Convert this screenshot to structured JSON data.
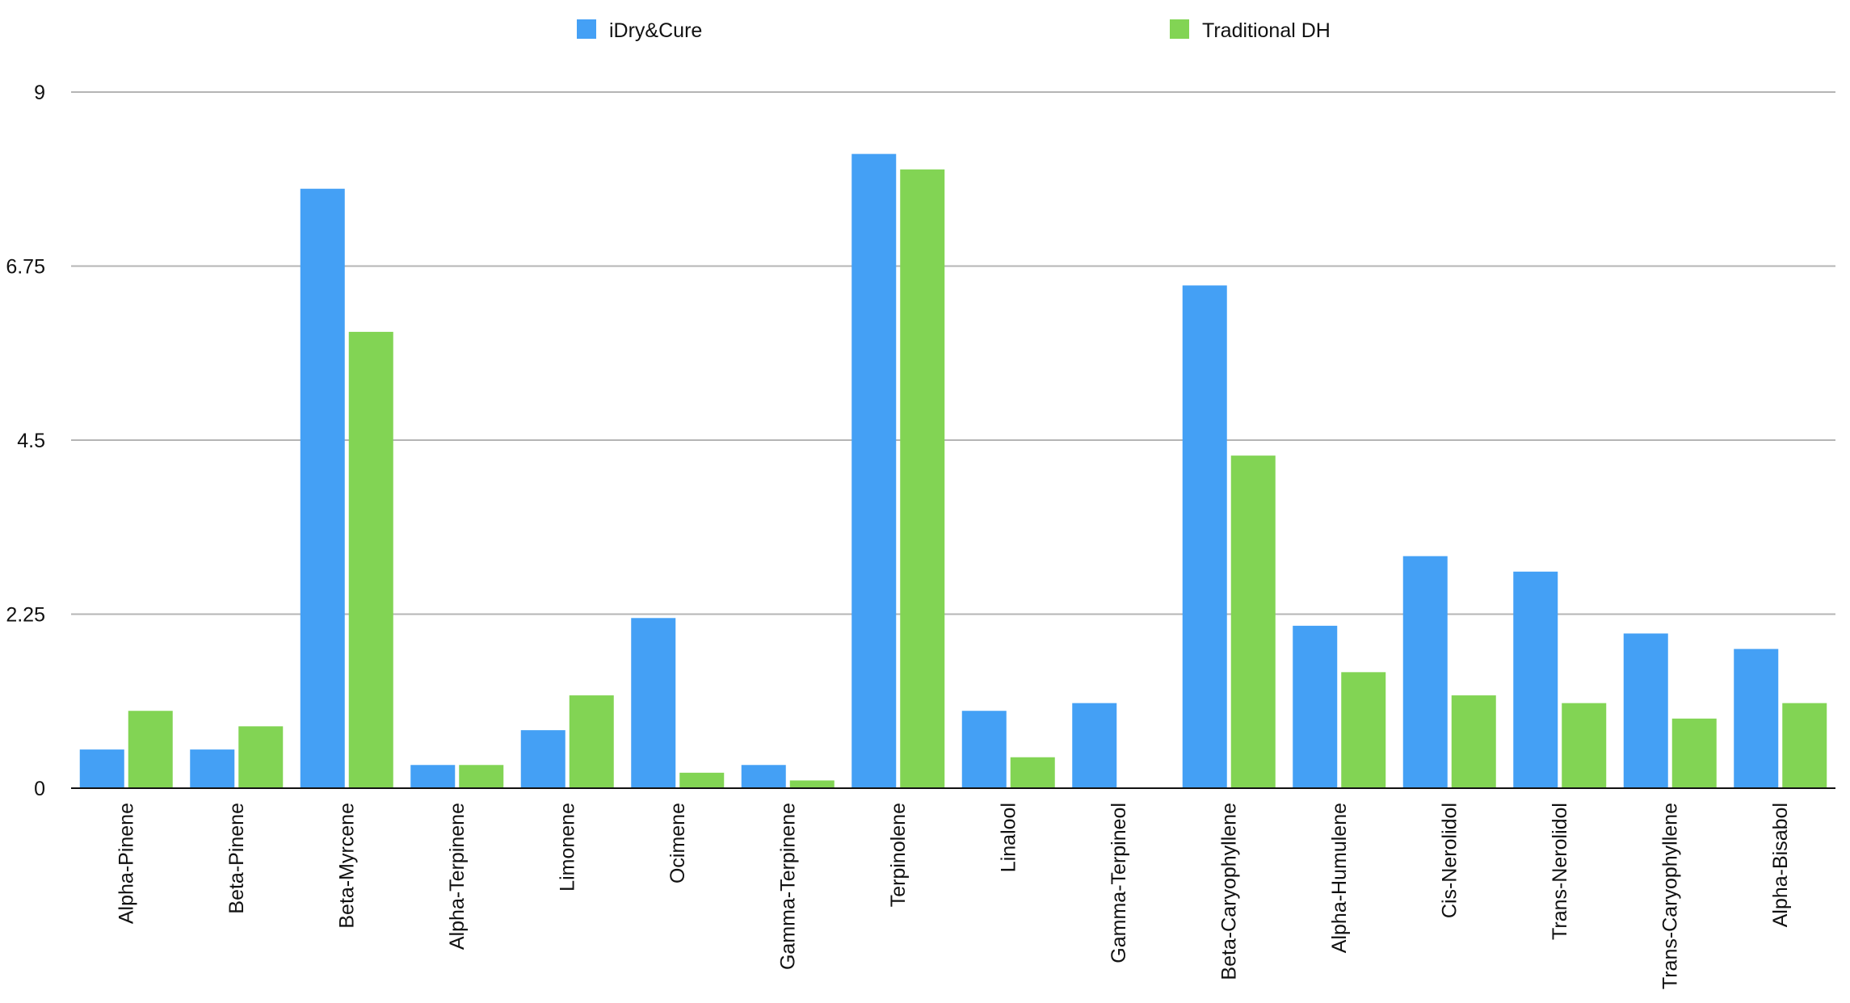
{
  "chart_data": {
    "type": "bar",
    "categories": [
      "Alpha-Pinene",
      "Beta-Pinene",
      "Beta-Myrcene",
      "Alpha-Terpinene",
      "Limonene",
      "Ocimene",
      "Gamma-Terpinene",
      "Terpinolene",
      "Linalool",
      "Gamma-Terpineol",
      "Beta-Caryophyllene",
      "Alpha-Humulene",
      "Cis-Nerolidol",
      "Trans-Nerolidol",
      "Trans-Caryophyllene",
      "Alpha-Bisabol"
    ],
    "series": [
      {
        "name": "iDry&Cure",
        "color": "#44a0f5",
        "values": [
          0.5,
          0.5,
          7.75,
          0.3,
          0.75,
          2.2,
          0.3,
          8.2,
          1.0,
          1.1,
          6.5,
          2.1,
          3.0,
          2.8,
          2.0,
          1.8
        ]
      },
      {
        "name": "Traditional DH",
        "color": "#82d454",
        "values": [
          1.0,
          0.8,
          5.9,
          0.3,
          1.2,
          0.2,
          0.1,
          8.0,
          0.4,
          0.0,
          4.3,
          1.5,
          1.2,
          1.1,
          0.9,
          1.1
        ]
      }
    ],
    "yticks": [
      "0",
      "2.25",
      "4.5",
      "6.75",
      "9"
    ],
    "ylim": [
      0,
      9
    ],
    "grid": true,
    "legend_position": "top-center",
    "title": "",
    "xlabel": "",
    "ylabel": ""
  }
}
